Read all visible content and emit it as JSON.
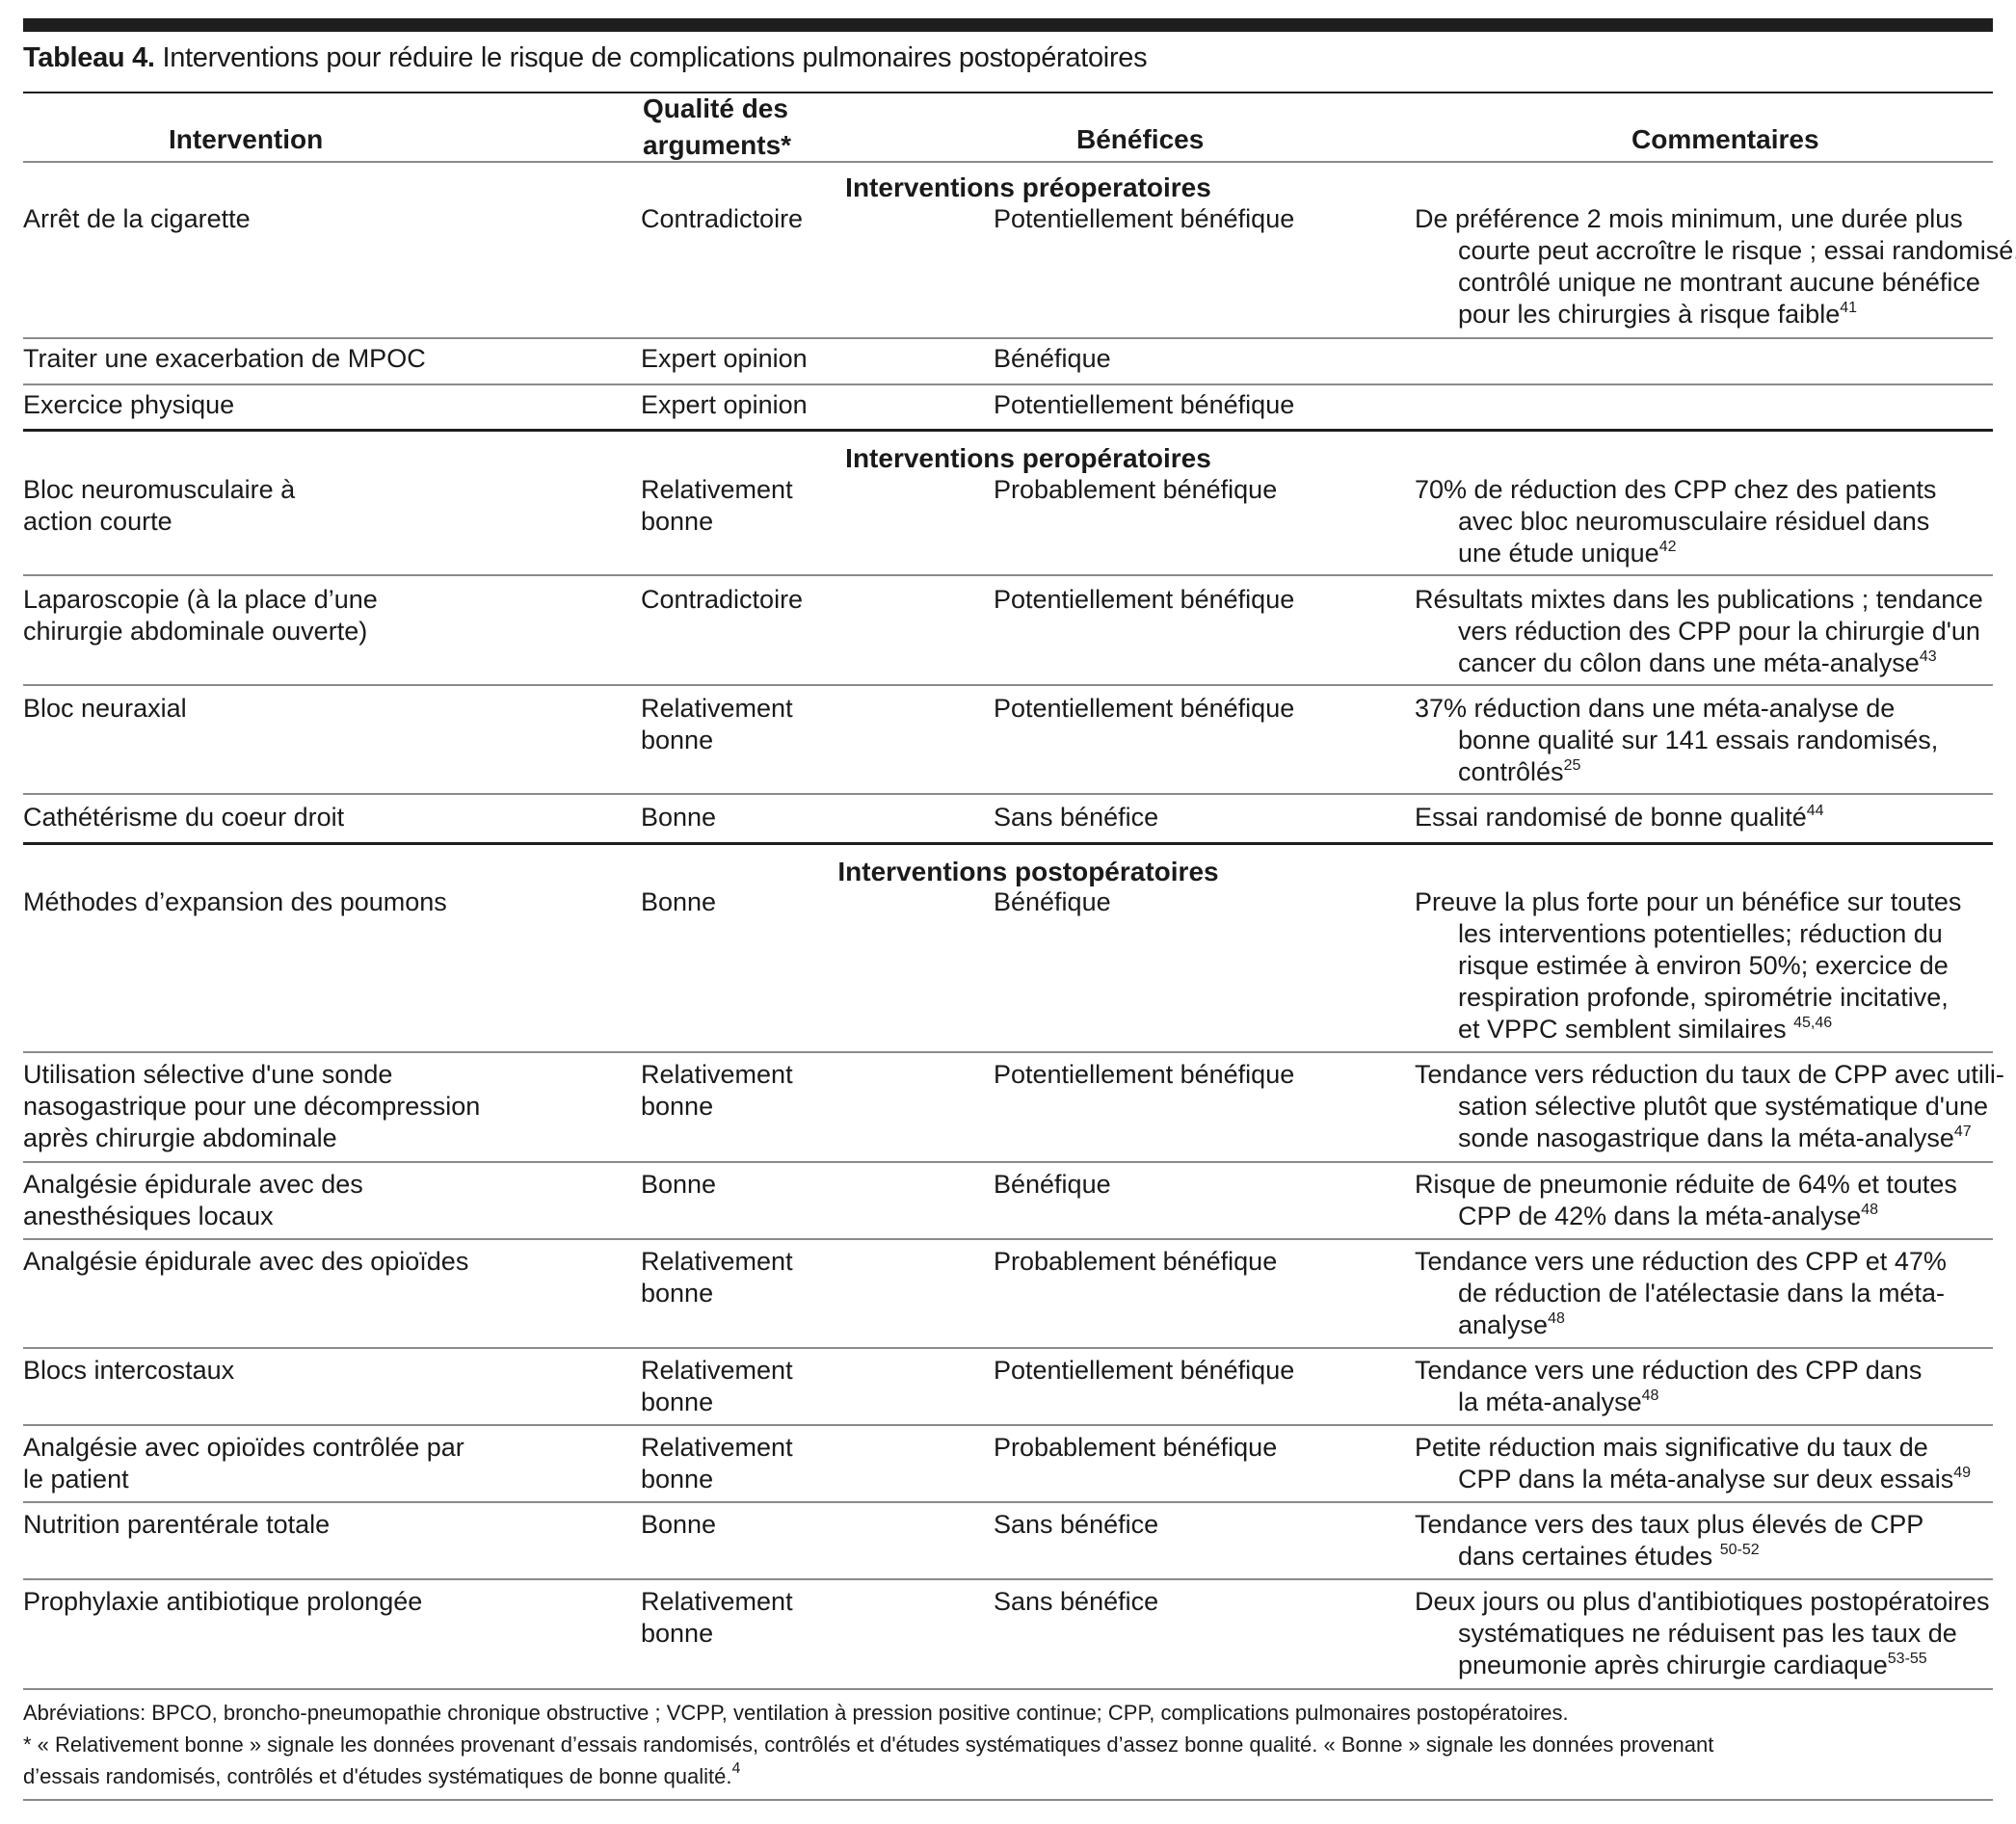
{
  "title": {
    "label": "Tableau 4.",
    "text": "Interventions pour réduire le risque de complications pulmonaires postopératoires"
  },
  "headers": {
    "intervention": "Intervention",
    "quality_line1": "Qualité des",
    "quality_line2": "arguments*",
    "benefits": "Bénéfices",
    "comments": "Commentaires"
  },
  "sections": [
    {
      "title": "Interventions préoperatoires",
      "rows": [
        {
          "intervention": [
            "Arrêt de la cigarette"
          ],
          "quality": [
            "Contradictoire"
          ],
          "benefit": [
            "Potentiellement bénéfique"
          ],
          "comment": [
            "De préférence 2 mois minimum, une durée plus",
            "courte peut accroître le risque ; essai randomisé,",
            "contrôlé unique ne montrant aucune bénéfice",
            "pour les chirurgies à risque faible"
          ],
          "ref": "41"
        },
        {
          "intervention": [
            "Traiter une exacerbation de MPOC"
          ],
          "quality": [
            "Expert opinion"
          ],
          "benefit": [
            "Bénéfique"
          ],
          "comment": [],
          "ref": ""
        },
        {
          "intervention": [
            "Exercice physique"
          ],
          "quality": [
            "Expert opinion"
          ],
          "benefit": [
            "Potentiellement bénéfique"
          ],
          "comment": [],
          "ref": ""
        }
      ]
    },
    {
      "title": "Interventions peropératoires",
      "rows": [
        {
          "intervention": [
            "Bloc neuromusculaire à",
            "action courte"
          ],
          "quality": [
            "Relativement",
            "bonne"
          ],
          "benefit": [
            "Probablement bénéfique"
          ],
          "comment": [
            "70% de réduction des CPP chez des patients",
            "avec bloc neuromusculaire résiduel dans",
            "une étude unique"
          ],
          "ref": "42"
        },
        {
          "intervention": [
            "Laparoscopie (à la place d’une",
            "chirurgie abdominale ouverte)"
          ],
          "quality": [
            "Contradictoire"
          ],
          "benefit": [
            "Potentiellement bénéfique"
          ],
          "comment": [
            "Résultats mixtes dans les publications ; tendance",
            "vers réduction des CPP pour la chirurgie d'un",
            "cancer du côlon dans une méta-analyse"
          ],
          "ref": "43"
        },
        {
          "intervention": [
            "Bloc neuraxial"
          ],
          "quality": [
            "Relativement",
            "bonne"
          ],
          "benefit": [
            "Potentiellement bénéfique"
          ],
          "comment": [
            "37% réduction dans une méta-analyse de",
            "bonne qualité sur 141 essais randomisés,",
            "contrôlés"
          ],
          "ref": "25"
        },
        {
          "intervention": [
            "Cathétérisme du coeur droit"
          ],
          "quality": [
            "Bonne"
          ],
          "benefit": [
            "Sans bénéfice"
          ],
          "comment": [
            "Essai randomisé de bonne qualité"
          ],
          "ref": "44"
        }
      ]
    },
    {
      "title": "Interventions postopératoires",
      "rows": [
        {
          "intervention": [
            "Méthodes d’expansion des poumons"
          ],
          "quality": [
            "Bonne"
          ],
          "benefit": [
            "Bénéfique"
          ],
          "comment": [
            "Preuve la plus forte pour un bénéfice sur toutes",
            "les interventions potentielles; réduction du",
            "risque estimée à environ 50%; exercice de",
            "respiration profonde, spirométrie incitative,",
            "et VPPC semblent similaires "
          ],
          "ref": "45,46"
        },
        {
          "intervention": [
            "Utilisation sélective d'une sonde",
            "nasogastrique pour une décompression",
            "après chirurgie abdominale"
          ],
          "quality": [
            "Relativement",
            "bonne"
          ],
          "benefit": [
            "Potentiellement bénéfique"
          ],
          "comment": [
            "Tendance vers réduction du taux de CPP avec utili-",
            "sation sélective plutôt que systématique d'une",
            "sonde nasogastrique dans la méta-analyse"
          ],
          "ref": "47"
        },
        {
          "intervention": [
            "Analgésie épidurale avec des",
            "anesthésiques locaux"
          ],
          "quality": [
            "Bonne"
          ],
          "benefit": [
            "Bénéfique"
          ],
          "comment": [
            "Risque de pneumonie réduite de 64% et toutes",
            "CPP de 42% dans la méta-analyse"
          ],
          "ref": "48"
        },
        {
          "intervention": [
            "Analgésie épidurale avec des opioïdes"
          ],
          "quality": [
            "Relativement",
            "bonne"
          ],
          "benefit": [
            "Probablement bénéfique"
          ],
          "comment": [
            "Tendance vers une réduction des CPP et 47%",
            "de réduction de l'atélectasie dans la méta-",
            "analyse"
          ],
          "ref": "48"
        },
        {
          "intervention": [
            "Blocs intercostaux"
          ],
          "quality": [
            "Relativement",
            "bonne"
          ],
          "benefit": [
            "Potentiellement bénéfique"
          ],
          "comment": [
            "Tendance vers une réduction des CPP dans",
            "la méta-analyse"
          ],
          "ref": "48"
        },
        {
          "intervention": [
            "Analgésie avec opioïdes contrôlée par",
            "le patient"
          ],
          "quality": [
            "Relativement",
            "bonne"
          ],
          "benefit": [
            "Probablement bénéfique"
          ],
          "comment": [
            "Petite réduction mais significative du taux de",
            "CPP dans la méta-analyse sur deux essais"
          ],
          "ref": "49"
        },
        {
          "intervention": [
            "Nutrition parentérale totale"
          ],
          "quality": [
            "Bonne"
          ],
          "benefit": [
            "Sans bénéfice"
          ],
          "comment": [
            "Tendance vers des taux plus élevés de CPP",
            "dans certaines études "
          ],
          "ref": "50-52"
        },
        {
          "intervention": [
            "Prophylaxie antibiotique prolongée"
          ],
          "quality": [
            "Relativement",
            "bonne"
          ],
          "benefit": [
            "Sans bénéfice"
          ],
          "comment": [
            "Deux jours ou plus d'antibiotiques postopératoires",
            "systématiques  ne réduisent pas les taux de",
            "pneumonie après chirurgie cardiaque"
          ],
          "ref": "53-55"
        }
      ]
    }
  ],
  "footnotes": {
    "abbreviations": "Abréviations: BPCO, broncho-pneumopathie  chronique obstructive ; VCPP, ventilation à pression positive continue; CPP, complications pulmonaires postopératoires.",
    "quality_note": [
      "* « Relativement bonne » signale les données provenant d’essais randomisés, contrôlés et d'études systématiques d’assez bonne qualité. « Bonne » signale les données provenant",
      "d’essais randomisés, contrôlés et d'études systématiques de bonne qualité."
    ],
    "quality_ref": "4"
  }
}
